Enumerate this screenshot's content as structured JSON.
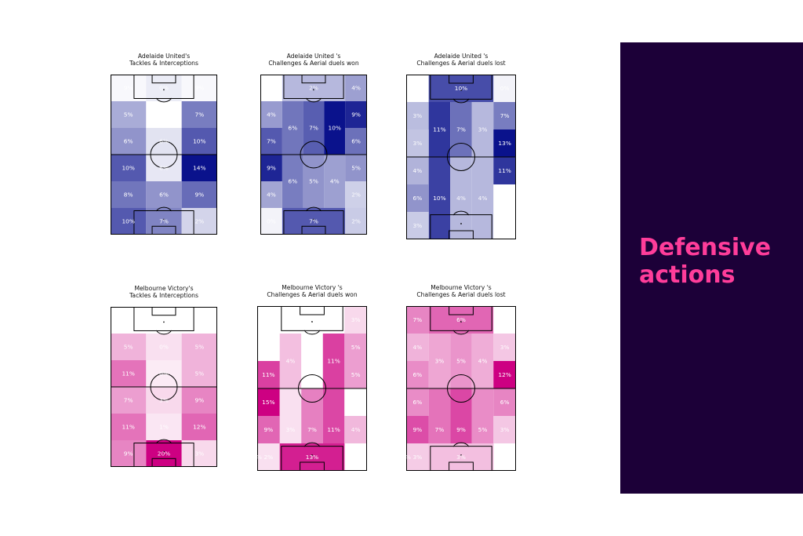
{
  "panel": {
    "title_line1": "Defensive",
    "title_line2": "actions",
    "background": "#1c0038",
    "title_color": "#ff3d9a"
  },
  "chart_data": [
    {
      "type": "heatmap",
      "team": "Adelaide United",
      "palette": "blue",
      "title_line1": "Adelaide United's",
      "title_line2": "Tackles & Interceptions",
      "rows": [
        {
          "cells": [
            {
              "w": 1,
              "v": 9,
              "c": 0.03
            },
            {
              "w": 1,
              "v": 0,
              "c": 0.08
            },
            {
              "w": 1,
              "v": 9,
              "c": 0.03
            }
          ]
        },
        {
          "cells": [
            {
              "w": 1,
              "v": 5,
              "c": 0.35
            },
            {
              "w": 1,
              "v": 0,
              "c": 0.0
            },
            {
              "w": 1,
              "v": 7,
              "c": 0.55
            }
          ]
        },
        {
          "cells": [
            {
              "w": 1,
              "v": 6,
              "c": 0.45
            },
            {
              "w": 1,
              "v": 6,
              "c": 0.12
            },
            {
              "w": 1,
              "v": 10,
              "c": 0.7
            }
          ]
        },
        {
          "cells": [
            {
              "w": 1,
              "v": 10,
              "c": 0.7
            },
            {
              "w": 1,
              "v": 6,
              "c": 0.1
            },
            {
              "w": 1,
              "v": 14,
              "c": 1.0
            }
          ]
        },
        {
          "cells": [
            {
              "w": 1,
              "v": 8,
              "c": 0.58
            },
            {
              "w": 1,
              "v": 6,
              "c": 0.45
            },
            {
              "w": 1,
              "v": 9,
              "c": 0.62
            }
          ]
        },
        {
          "cells": [
            {
              "w": 1,
              "v": 10,
              "c": 0.7
            },
            {
              "w": 1,
              "v": 7,
              "c": 0.52
            },
            {
              "w": 1,
              "v": 2,
              "c": 0.18
            }
          ]
        }
      ]
    },
    {
      "type": "heatmap",
      "team": "Adelaide United",
      "palette": "blue",
      "title_line1": "Adelaide United 's",
      "title_line2": "Challenges & Aerial duels won",
      "rows": [
        {
          "cells": [
            {
              "w": 1,
              "v": 0,
              "c": 0.0
            },
            {
              "w": 3,
              "v": 2,
              "c": 0.3
            },
            {
              "w": 1,
              "v": 4,
              "c": 0.4
            }
          ]
        },
        {
          "cells": [
            {
              "w": 1,
              "v": 4,
              "c": 0.42
            },
            {
              "w": 1,
              "v": 6,
              "c": 0.58,
              "span": 2
            },
            {
              "w": 1,
              "v": 7,
              "c": 0.68,
              "span": 2
            },
            {
              "w": 1,
              "v": 10,
              "c": 1.0,
              "span": 2
            },
            {
              "w": 1,
              "v": 9,
              "c": 0.92
            }
          ]
        },
        {
          "cells": [
            {
              "w": 1,
              "v": 7,
              "c": 0.7
            },
            {
              "w": 1,
              "v": 6,
              "c": 0.6
            }
          ]
        },
        {
          "cells": [
            {
              "w": 1,
              "v": 9,
              "c": 0.92
            },
            {
              "w": 1,
              "v": 6,
              "c": 0.55,
              "span": 2
            },
            {
              "w": 1,
              "v": 5,
              "c": 0.45,
              "span": 2
            },
            {
              "w": 1,
              "v": 4,
              "c": 0.4,
              "span": 2
            },
            {
              "w": 1,
              "v": 5,
              "c": 0.45
            }
          ]
        },
        {
          "cells": [
            {
              "w": 1,
              "v": 4,
              "c": 0.38
            },
            {
              "w": 1,
              "v": 2,
              "c": 0.2
            }
          ]
        },
        {
          "cells": [
            {
              "w": 1,
              "v": 0,
              "c": 0.05
            },
            {
              "w": 3,
              "v": 7,
              "c": 0.7
            },
            {
              "w": 1,
              "v": 2,
              "c": 0.22
            }
          ]
        }
      ]
    },
    {
      "type": "heatmap",
      "team": "Adelaide United",
      "palette": "blue",
      "title_line1": "Adelaide United 's",
      "title_line2": "Challenges & Aerial duels lost",
      "rows": [
        {
          "cells": [
            {
              "w": 1,
              "v": 0,
              "c": 0.0
            },
            {
              "w": 3,
              "v": 10,
              "c": 0.75
            },
            {
              "w": 1,
              "v": 0,
              "c": 0.05
            }
          ]
        },
        {
          "cells": [
            {
              "w": 1,
              "v": 3,
              "c": 0.28
            },
            {
              "w": 1,
              "v": 11,
              "c": 0.85,
              "span": 2
            },
            {
              "w": 1,
              "v": 7,
              "c": 0.6,
              "span": 2
            },
            {
              "w": 1,
              "v": 3,
              "c": 0.3,
              "span": 2
            },
            {
              "w": 1,
              "v": 7,
              "c": 0.55
            }
          ]
        },
        {
          "cells": [
            {
              "w": 1,
              "v": 3,
              "c": 0.25
            },
            {
              "w": 1,
              "v": 13,
              "c": 1.0
            }
          ]
        },
        {
          "cells": [
            {
              "w": 1,
              "v": 4,
              "c": 0.32
            },
            {
              "w": 1,
              "v": 10,
              "c": 0.8,
              "span": 3
            },
            {
              "w": 1,
              "v": 4,
              "c": 0.3,
              "span": 3
            },
            {
              "w": 1,
              "v": 4,
              "c": 0.3,
              "span": 3
            },
            {
              "w": 1,
              "v": 11,
              "c": 0.85
            }
          ]
        },
        {
          "cells": [
            {
              "w": 1,
              "v": 6,
              "c": 0.45
            },
            {
              "w": 1,
              "v": 0,
              "c": 0.0
            }
          ]
        },
        {
          "cells": [
            {
              "w": 1,
              "v": 3,
              "c": 0.22
            },
            {
              "w": 1,
              "v": 0,
              "c": 0.0
            }
          ]
        }
      ]
    },
    {
      "type": "heatmap",
      "team": "Melbourne Victory",
      "palette": "pink",
      "title_line1": "Melbourne Victory's",
      "title_line2": "Tackles & Interceptions",
      "rows": [
        {
          "cells": [
            {
              "w": 1,
              "v": 0,
              "c": 0.0
            },
            {
              "w": 1,
              "v": 0,
              "c": 0.0
            },
            {
              "w": 1,
              "v": 0,
              "c": 0.0
            }
          ]
        },
        {
          "cells": [
            {
              "w": 1,
              "v": 5,
              "c": 0.3
            },
            {
              "w": 1,
              "v": 0,
              "c": 0.12
            },
            {
              "w": 1,
              "v": 5,
              "c": 0.3
            }
          ]
        },
        {
          "cells": [
            {
              "w": 1,
              "v": 11,
              "c": 0.55
            },
            {
              "w": 1,
              "v": 0,
              "c": 0.08
            },
            {
              "w": 1,
              "v": 5,
              "c": 0.3
            }
          ]
        },
        {
          "cells": [
            {
              "w": 1,
              "v": 7,
              "c": 0.38
            },
            {
              "w": 1,
              "v": 3,
              "c": 0.15
            },
            {
              "w": 1,
              "v": 9,
              "c": 0.48
            }
          ]
        },
        {
          "cells": [
            {
              "w": 1,
              "v": 11,
              "c": 0.55
            },
            {
              "w": 1,
              "v": 1,
              "c": 0.1
            },
            {
              "w": 1,
              "v": 12,
              "c": 0.6
            }
          ]
        },
        {
          "cells": [
            {
              "w": 1,
              "v": 9,
              "c": 0.48
            },
            {
              "w": 1,
              "v": 20,
              "c": 1.0
            },
            {
              "w": 1,
              "v": 3,
              "c": 0.15
            }
          ]
        }
      ]
    },
    {
      "type": "heatmap",
      "team": "Melbourne Victory",
      "palette": "pink",
      "title_line1": "Melbourne Victory 's",
      "title_line2": "Challenges & Aerial duels won",
      "rows": [
        {
          "cells": [
            {
              "w": 1,
              "v": 0,
              "c": 0.0
            },
            {
              "w": 3,
              "v": 0,
              "c": 0.0
            },
            {
              "w": 1,
              "v": 3,
              "c": 0.15
            }
          ]
        },
        {
          "cells": [
            {
              "w": 1,
              "v": 0,
              "c": 0.0
            },
            {
              "w": 1,
              "v": 4,
              "c": 0.25,
              "span": 2
            },
            {
              "w": 1,
              "v": 0,
              "c": 0.0,
              "span": 2
            },
            {
              "w": 1,
              "v": 11,
              "c": 0.75,
              "span": 2
            },
            {
              "w": 1,
              "v": 5,
              "c": 0.38
            }
          ]
        },
        {
          "cells": [
            {
              "w": 1,
              "v": 11,
              "c": 0.75
            },
            {
              "w": 1,
              "v": 5,
              "c": 0.38
            }
          ]
        },
        {
          "cells": [
            {
              "w": 1,
              "v": 15,
              "c": 1.0
            },
            {
              "w": 1,
              "v": 3,
              "c": 0.12,
              "span": 3
            },
            {
              "w": 1,
              "v": 7,
              "c": 0.5,
              "span": 3
            },
            {
              "w": 1,
              "v": 11,
              "c": 0.72,
              "span": 3
            },
            {
              "w": 1,
              "v": 0,
              "c": 0.0
            }
          ]
        },
        {
          "cells": [
            {
              "w": 1,
              "v": 9,
              "c": 0.6
            },
            {
              "w": 1,
              "v": 4,
              "c": 0.28
            }
          ]
        },
        {
          "cells": [
            {
              "w": 1,
              "v": 2,
              "c": 0.12
            },
            {
              "w": 3,
              "v": 13,
              "c": 0.88
            },
            {
              "w": 1,
              "v": 0,
              "c": 0.0
            }
          ]
        }
      ]
    },
    {
      "type": "heatmap",
      "team": "Melbourne Victory",
      "palette": "pink",
      "title_line1": "Melbourne Victory 's",
      "title_line2": "Challenges & Aerial duels lost",
      "rows": [
        {
          "cells": [
            {
              "w": 1,
              "v": 7,
              "c": 0.48
            },
            {
              "w": 3,
              "v": 6,
              "c": 0.6
            },
            {
              "w": 1,
              "v": 0,
              "c": 0.0
            }
          ]
        },
        {
          "cells": [
            {
              "w": 1,
              "v": 4,
              "c": 0.3
            },
            {
              "w": 1,
              "v": 3,
              "c": 0.35,
              "span": 2
            },
            {
              "w": 1,
              "v": 5,
              "c": 0.42,
              "span": 2
            },
            {
              "w": 1,
              "v": 4,
              "c": 0.32,
              "span": 2
            },
            {
              "w": 1,
              "v": 3,
              "c": 0.22
            }
          ]
        },
        {
          "cells": [
            {
              "w": 1,
              "v": 6,
              "c": 0.45
            },
            {
              "w": 1,
              "v": 12,
              "c": 1.0
            }
          ]
        },
        {
          "cells": [
            {
              "w": 1,
              "v": 6,
              "c": 0.45
            },
            {
              "w": 1,
              "v": 7,
              "c": 0.55,
              "span": 3
            },
            {
              "w": 1,
              "v": 9,
              "c": 0.72,
              "span": 3
            },
            {
              "w": 1,
              "v": 5,
              "c": 0.45,
              "span": 3
            },
            {
              "w": 1,
              "v": 6,
              "c": 0.48
            }
          ]
        },
        {
          "cells": [
            {
              "w": 1,
              "v": 9,
              "c": 0.7
            },
            {
              "w": 1,
              "v": 3,
              "c": 0.22
            }
          ]
        },
        {
          "cells": [
            {
              "w": 1,
              "v": 3,
              "c": 0.2
            },
            {
              "w": 3,
              "v": 3,
              "c": 0.25
            },
            {
              "w": 1,
              "v": 0,
              "c": 0.0
            }
          ]
        }
      ]
    }
  ]
}
